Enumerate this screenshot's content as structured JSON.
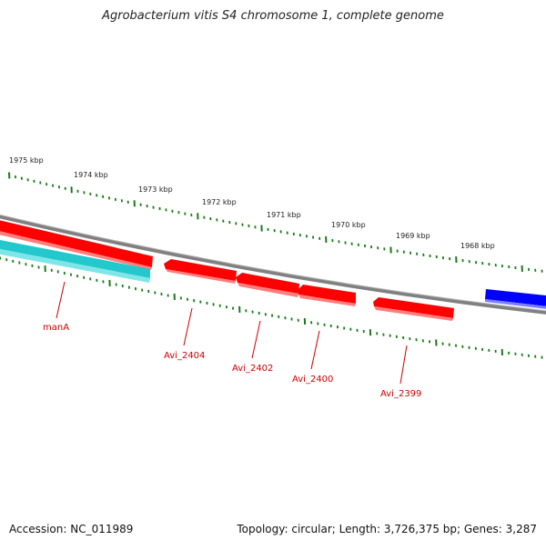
{
  "title": "Agrobacterium vitis S4 chromosome 1, complete genome",
  "footer": {
    "accession": "Accession: NC_011989",
    "summary": "Topology: circular; Length: 3,726,375 bp; Genes: 3,287"
  },
  "colors": {
    "backbone": "#808080",
    "forward_gene": "#ff0000",
    "reverse_gene": "#ff0000",
    "rna_gene": "#22c8cc",
    "other_gene": "#0000ff",
    "tick": "#1a7a1a",
    "label": "#cc0000"
  },
  "scale_labels": [
    "1975 kbp",
    "1974 kbp",
    "1973 kbp",
    "1972 kbp",
    "1971 kbp",
    "1970 kbp",
    "1969 kbp",
    "1968 kbp"
  ],
  "gene_labels": [
    "manA",
    "Avi_2404",
    "Avi_2402",
    "Avi_2400",
    "Avi_2399"
  ]
}
